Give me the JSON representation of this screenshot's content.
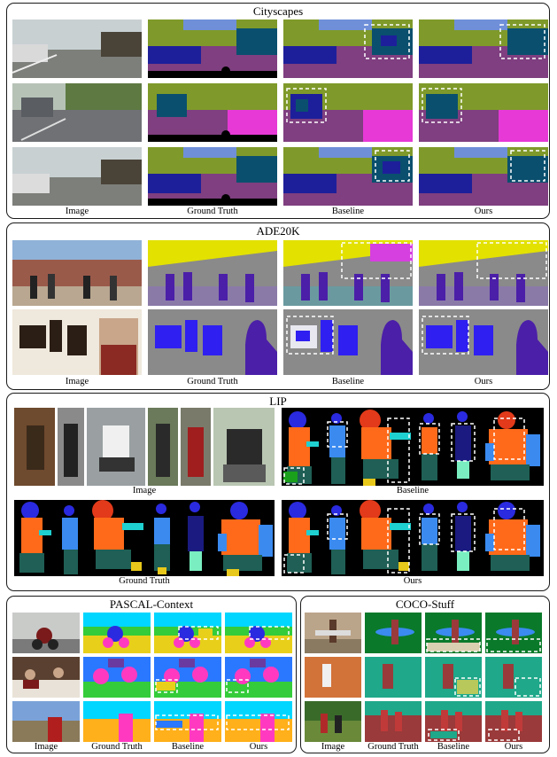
{
  "figure": {
    "panels": [
      {
        "id": "cityscapes",
        "title": "Cityscapes",
        "captions": [
          "Image",
          "Ground Truth",
          "Baseline",
          "Ours"
        ]
      },
      {
        "id": "ade20k",
        "title": "ADE20K",
        "captions": [
          "Image",
          "Ground Truth",
          "Baseline",
          "Ours"
        ]
      },
      {
        "id": "lip",
        "title": "LIP",
        "captions": [
          "Image",
          "Baseline",
          "Ground Truth",
          "Ours"
        ]
      },
      {
        "id": "pascal",
        "title": "PASCAL-Context",
        "captions": [
          "Image",
          "Ground Truth",
          "Baseline",
          "Ours"
        ]
      },
      {
        "id": "coco",
        "title": "COCO-Stuff",
        "captions": [
          "Image",
          "Ground Truth",
          "Baseline",
          "Ours"
        ]
      }
    ]
  },
  "colors": {
    "sky": "#6f8fd9",
    "vegetation": "#7f9a2a",
    "road": "#7f3f80",
    "sidewalk": "#e639d6",
    "car": "#1d1f9a",
    "bus": "#0a4f6e",
    "building": "#4b4b4b",
    "ceiling": "#e2e100",
    "wall": "#8a8a8a",
    "person": "#4b1fa8",
    "painting": "#2f1ff0",
    "lip_bg": "#000000",
    "lip_coat": "#ff6a1a",
    "lip_pants": "#1f5f55",
    "lip_hair": "#2a2ae0",
    "pascal_sky": "#00d6ff",
    "pascal_ground": "#34cc3a",
    "coco_dirt": "#0a7a2a",
    "coco_teal": "#1fa88a",
    "coco_red": "#9a3a3a"
  }
}
